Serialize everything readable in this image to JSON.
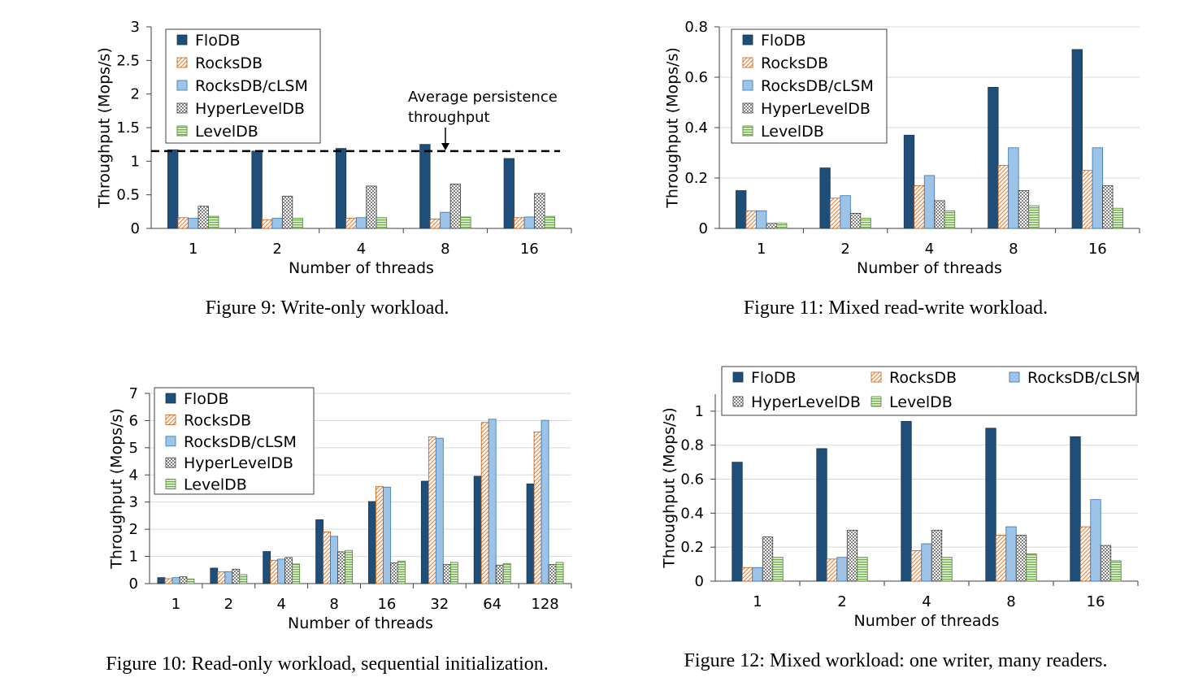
{
  "colors": {
    "FloDB": "#1f4e79",
    "RocksDB": "#f4b183",
    "RocksDB/cLSM": "#9dc3e6",
    "HyperLevelDB": "#a6a6a6",
    "LevelDB": "#a9d18e"
  },
  "figures": {
    "fig9": {
      "caption": "Figure 9: Write-only workload."
    },
    "fig11": {
      "caption": "Figure 11: Mixed read-write workload."
    },
    "fig10": {
      "caption": "Figure 10: Read-only workload, sequential initialization."
    },
    "fig12": {
      "caption": "Figure 12: Mixed workload: one writer, many readers."
    }
  },
  "chart_data": [
    {
      "id": "fig9",
      "type": "bar",
      "categories": [
        "1",
        "2",
        "4",
        "8",
        "16"
      ],
      "xlabel": "Number of threads",
      "ylabel": "Throughput (Mops/s)",
      "ylim": [
        0,
        3
      ],
      "yticks": [
        "0",
        "0.5",
        "1",
        "1.5",
        "2",
        "2.5",
        "3"
      ],
      "ytick_values": [
        0,
        0.5,
        1,
        1.5,
        2,
        2.5,
        3
      ],
      "grid": false,
      "legend_placement": "top-left",
      "legend_columns": 1,
      "series": [
        {
          "name": "FloDB",
          "values": [
            1.17,
            1.15,
            1.19,
            1.25,
            1.04
          ]
        },
        {
          "name": "RocksDB",
          "values": [
            0.16,
            0.13,
            0.15,
            0.14,
            0.16
          ]
        },
        {
          "name": "RocksDB/cLSM",
          "values": [
            0.15,
            0.15,
            0.16,
            0.24,
            0.17
          ]
        },
        {
          "name": "HyperLevelDB",
          "values": [
            0.33,
            0.48,
            0.63,
            0.66,
            0.52
          ]
        },
        {
          "name": "LevelDB",
          "values": [
            0.18,
            0.15,
            0.16,
            0.17,
            0.18
          ]
        }
      ],
      "reference_line": {
        "value": 1.15
      },
      "annotation": {
        "line1": "Average persistence",
        "line2": "throughput"
      }
    },
    {
      "id": "fig11",
      "type": "bar",
      "categories": [
        "1",
        "2",
        "4",
        "8",
        "16"
      ],
      "xlabel": "Number of threads",
      "ylabel": "Throughput (Mops/s)",
      "ylim": [
        0,
        0.8
      ],
      "yticks": [
        "0",
        "0.2",
        "0.4",
        "0.6",
        "0.8"
      ],
      "ytick_values": [
        0,
        0.2,
        0.4,
        0.6,
        0.8
      ],
      "grid": true,
      "legend_placement": "top-left",
      "legend_columns": 1,
      "series": [
        {
          "name": "FloDB",
          "values": [
            0.15,
            0.24,
            0.37,
            0.56,
            0.71
          ]
        },
        {
          "name": "RocksDB",
          "values": [
            0.07,
            0.12,
            0.17,
            0.25,
            0.23
          ]
        },
        {
          "name": "RocksDB/cLSM",
          "values": [
            0.07,
            0.13,
            0.21,
            0.32,
            0.32
          ]
        },
        {
          "name": "HyperLevelDB",
          "values": [
            0.02,
            0.06,
            0.11,
            0.15,
            0.17
          ]
        },
        {
          "name": "LevelDB",
          "values": [
            0.02,
            0.04,
            0.07,
            0.09,
            0.08
          ]
        }
      ]
    },
    {
      "id": "fig10",
      "type": "bar",
      "categories": [
        "1",
        "2",
        "4",
        "8",
        "16",
        "32",
        "64",
        "128"
      ],
      "xlabel": "Number of threads",
      "ylabel": "Throughput (Mops/s)",
      "ylim": [
        0,
        7
      ],
      "yticks": [
        "0",
        "1",
        "2",
        "3",
        "4",
        "5",
        "6",
        "7"
      ],
      "ytick_values": [
        0,
        1,
        2,
        3,
        4,
        5,
        6,
        7
      ],
      "grid": true,
      "legend_placement": "top-left",
      "legend_columns": 1,
      "series": [
        {
          "name": "FloDB",
          "values": [
            0.22,
            0.57,
            1.18,
            2.35,
            3.02,
            3.77,
            3.95,
            3.67
          ]
        },
        {
          "name": "RocksDB",
          "values": [
            0.18,
            0.43,
            0.86,
            1.9,
            3.57,
            5.4,
            5.93,
            5.58
          ]
        },
        {
          "name": "RocksDB/cLSM",
          "values": [
            0.22,
            0.44,
            0.9,
            1.74,
            3.55,
            5.35,
            6.05,
            6.01
          ]
        },
        {
          "name": "HyperLevelDB",
          "values": [
            0.25,
            0.53,
            0.96,
            1.17,
            0.76,
            0.7,
            0.68,
            0.7
          ]
        },
        {
          "name": "LevelDB",
          "values": [
            0.17,
            0.33,
            0.72,
            1.22,
            0.83,
            0.78,
            0.74,
            0.78
          ]
        }
      ]
    },
    {
      "id": "fig12",
      "type": "bar",
      "categories": [
        "1",
        "2",
        "4",
        "8",
        "16"
      ],
      "xlabel": "Number of threads",
      "ylabel": "Throughput (Mops/s)",
      "ylim": [
        0,
        1.1
      ],
      "yticks": [
        "0",
        "0.2",
        "0.4",
        "0.6",
        "0.8",
        "1"
      ],
      "ytick_values": [
        0,
        0.2,
        0.4,
        0.6,
        0.8,
        1
      ],
      "grid": true,
      "legend_placement": "top",
      "legend_columns": 3,
      "series": [
        {
          "name": "FloDB",
          "values": [
            0.7,
            0.78,
            0.94,
            0.9,
            0.85
          ]
        },
        {
          "name": "RocksDB",
          "values": [
            0.08,
            0.13,
            0.18,
            0.27,
            0.32
          ]
        },
        {
          "name": "RocksDB/cLSM",
          "values": [
            0.08,
            0.14,
            0.22,
            0.32,
            0.48
          ]
        },
        {
          "name": "HyperLevelDB",
          "values": [
            0.26,
            0.3,
            0.3,
            0.27,
            0.21
          ]
        },
        {
          "name": "LevelDB",
          "values": [
            0.14,
            0.14,
            0.14,
            0.16,
            0.12
          ]
        }
      ]
    }
  ]
}
